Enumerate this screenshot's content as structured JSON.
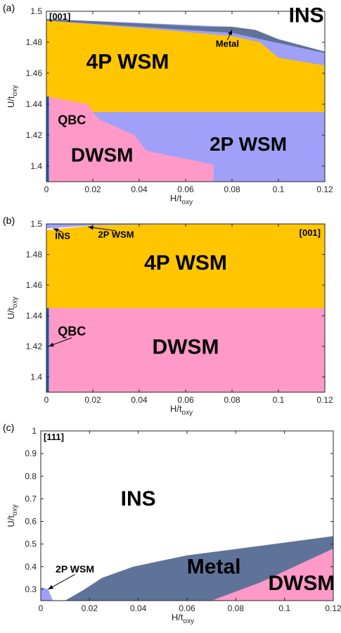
{
  "figure": {
    "panels": [
      {
        "label": "(a)",
        "orientation": "[001]",
        "xlabel": "H/t",
        "xlabel_sub": "oxy",
        "ylabel": "U/t",
        "ylabel_sub": "oxy",
        "xticks": [
          "0",
          "0.02",
          "0.04",
          "0.06",
          "0.08",
          "0.1",
          "0.12"
        ],
        "yticks": [
          "1.4",
          "1.42",
          "1.44",
          "1.46",
          "1.48",
          "1.5"
        ]
      },
      {
        "label": "(b)",
        "orientation": "[001]",
        "xlabel": "H/t",
        "xlabel_sub": "oxy",
        "ylabel": "U/t",
        "ylabel_sub": "oxy",
        "xticks": [
          "0",
          "0.02",
          "0.04",
          "0.06",
          "0.08",
          "0.1",
          "0.12"
        ],
        "yticks": [
          "1.4",
          "1.42",
          "1.44",
          "1.46",
          "1.48",
          "1.5"
        ]
      },
      {
        "label": "(c)",
        "orientation": "[111]",
        "xlabel": "H/t",
        "xlabel_sub": "oxy",
        "ylabel": "U/t",
        "ylabel_sub": "oxy",
        "xticks": [
          "0",
          "0.02",
          "0.04",
          "0.06",
          "0.08",
          "0.1",
          "0.12"
        ],
        "yticks": [
          "0.3",
          "0.4",
          "0.5",
          "0.6",
          "0.7",
          "0.8",
          "0.9",
          "1"
        ]
      }
    ]
  },
  "chart_data": [
    {
      "type": "area",
      "panel": "(a)",
      "xlim": [
        0,
        0.12
      ],
      "ylim": [
        1.39,
        1.5
      ],
      "colors": {
        "INS": "#ffffff",
        "4P WSM": "#ffc600",
        "2P WSM": "#a0a0f8",
        "DWSM": "#ff99c8",
        "Metal": "#5f7399",
        "QBC": "#1560a6"
      },
      "regions": [
        {
          "name": "2P WSM",
          "points": [
            [
              0,
              1.495
            ],
            [
              0.08,
              1.49
            ],
            [
              0.12,
              1.473
            ],
            [
              0.12,
              1.39
            ],
            [
              0,
              1.39
            ]
          ]
        },
        {
          "name": "Metal",
          "points": [
            [
              0,
              1.495
            ],
            [
              0.07,
              1.49
            ],
            [
              0.08,
              1.49
            ],
            [
              0.09,
              1.488
            ],
            [
              0.1,
              1.482
            ],
            [
              0.12,
              1.474
            ],
            [
              0.12,
              1.473
            ],
            [
              0.08,
              1.486
            ],
            [
              0.04,
              1.49
            ],
            [
              0,
              1.494
            ]
          ]
        },
        {
          "name": "4P WSM",
          "points": [
            [
              0,
              1.494
            ],
            [
              0.05,
              1.488
            ],
            [
              0.08,
              1.484
            ],
            [
              0.092,
              1.48
            ],
            [
              0.1,
              1.47
            ],
            [
              0.12,
              1.465
            ],
            [
              0.12,
              1.435
            ],
            [
              0,
              1.435
            ]
          ]
        },
        {
          "name": "DWSM",
          "points": [
            [
              0,
              1.445
            ],
            [
              0.018,
              1.44
            ],
            [
              0.02,
              1.435
            ],
            [
              0.023,
              1.43
            ],
            [
              0.038,
              1.42
            ],
            [
              0.043,
              1.41
            ],
            [
              0.072,
              1.401
            ],
            [
              0.072,
              1.39
            ],
            [
              0,
              1.39
            ]
          ]
        },
        {
          "name": "QBC",
          "points": [
            [
              0,
              1.445
            ],
            [
              0,
              1.39
            ]
          ]
        }
      ],
      "labels": [
        {
          "text": "INS",
          "x": 0.112,
          "y": 1.493
        },
        {
          "text": "4P WSM",
          "x": 0.035,
          "y": 1.463
        },
        {
          "text": "2P WSM",
          "x": 0.087,
          "y": 1.41
        },
        {
          "text": "DWSM",
          "x": 0.024,
          "y": 1.403
        },
        {
          "text": "QBC",
          "x": 0.011,
          "y": 1.427
        },
        {
          "text": "Metal",
          "x": 0.078,
          "y": 1.477,
          "arrow_to": [
            0.08,
            1.488
          ]
        }
      ]
    },
    {
      "type": "area",
      "panel": "(b)",
      "xlim": [
        0,
        0.12
      ],
      "ylim": [
        1.39,
        1.5
      ],
      "colors": {
        "INS": "#ffffff",
        "4P WSM": "#ffc600",
        "2P WSM": "#a0a0f8",
        "DWSM": "#ff99c8",
        "QBC": "#1560a6"
      },
      "regions": [
        {
          "name": "INS",
          "points": [
            [
              0,
              1.5
            ],
            [
              0.08,
              1.5
            ],
            [
              0,
              1.497
            ]
          ]
        },
        {
          "name": "2P WSM",
          "points": [
            [
              0,
              1.497
            ],
            [
              0.02,
              1.499
            ],
            [
              0.06,
              1.5
            ],
            [
              0,
              1.5
            ]
          ]
        },
        {
          "name": "4P WSM",
          "points": [
            [
              0,
              1.496
            ],
            [
              0.02,
              1.499
            ],
            [
              0.06,
              1.5
            ],
            [
              0.12,
              1.5
            ],
            [
              0.12,
              1.445
            ],
            [
              0,
              1.445
            ]
          ]
        },
        {
          "name": "DWSM",
          "points": [
            [
              0,
              1.445
            ],
            [
              0.12,
              1.445
            ],
            [
              0.12,
              1.39
            ],
            [
              0,
              1.39
            ]
          ]
        },
        {
          "name": "QBC",
          "points": [
            [
              0,
              1.445
            ],
            [
              0,
              1.39
            ]
          ]
        }
      ],
      "labels": [
        {
          "text": "INS",
          "x": 0.007,
          "y": 1.49,
          "arrow_to": [
            0.003,
            1.497
          ]
        },
        {
          "text": "2P WSM",
          "x": 0.03,
          "y": 1.491,
          "arrow_to": [
            0.018,
            1.498
          ]
        },
        {
          "text": "4P WSM",
          "x": 0.06,
          "y": 1.47
        },
        {
          "text": "DWSM",
          "x": 0.06,
          "y": 1.415
        },
        {
          "text": "QBC",
          "x": 0.011,
          "y": 1.427,
          "arrow_to": [
            0.001,
            1.42
          ]
        }
      ]
    },
    {
      "type": "area",
      "panel": "(c)",
      "xlim": [
        0,
        0.12
      ],
      "ylim": [
        0.25,
        1.0
      ],
      "colors": {
        "INS": "#ffffff",
        "2P WSM": "#a0a0f8",
        "DWSM": "#ff99c8",
        "Metal": "#5f7399"
      },
      "regions": [
        {
          "name": "Metal",
          "points": [
            [
              0.01,
              0.25
            ],
            [
              0.018,
              0.3
            ],
            [
              0.025,
              0.35
            ],
            [
              0.038,
              0.4
            ],
            [
              0.06,
              0.45
            ],
            [
              0.08,
              0.478
            ],
            [
              0.12,
              0.535
            ],
            [
              0.12,
              0.25
            ]
          ]
        },
        {
          "name": "DWSM",
          "points": [
            [
              0.07,
              0.25
            ],
            [
              0.09,
              0.33
            ],
            [
              0.11,
              0.43
            ],
            [
              0.12,
              0.48
            ],
            [
              0.12,
              0.25
            ]
          ]
        },
        {
          "name": "2P WSM",
          "points": [
            [
              0,
              0.31
            ],
            [
              0.003,
              0.3
            ],
            [
              0.005,
              0.25
            ],
            [
              0,
              0.25
            ]
          ]
        }
      ],
      "labels": [
        {
          "text": "INS",
          "x": 0.04,
          "y": 0.67
        },
        {
          "text": "Metal",
          "x": 0.071,
          "y": 0.37
        },
        {
          "text": "DWSM",
          "x": 0.107,
          "y": 0.297
        },
        {
          "text": "2P WSM",
          "x": 0.014,
          "y": 0.375,
          "arrow_to": [
            0.003,
            0.3
          ]
        }
      ]
    }
  ]
}
